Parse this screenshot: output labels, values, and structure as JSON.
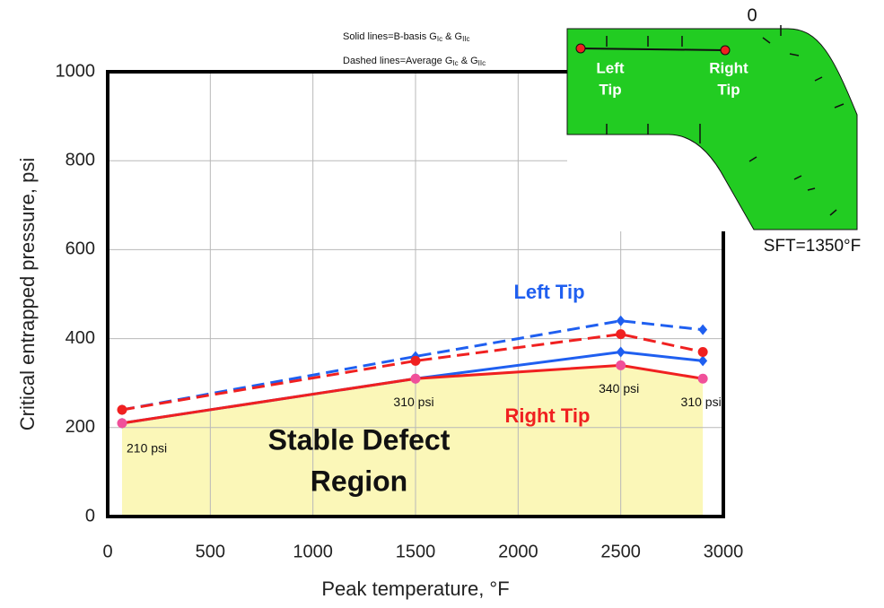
{
  "chart_data": {
    "type": "line",
    "x": [
      70,
      1500,
      2500,
      2900
    ],
    "series": [
      {
        "name": "Left Tip",
        "color": "#1f5ff0",
        "marker": "diamond",
        "values": [
          210,
          310,
          370,
          350
        ],
        "average": [
          240,
          360,
          440,
          420
        ]
      },
      {
        "name": "Right Tip",
        "color": "#f02020",
        "marker": "circle",
        "values": [
          210,
          310,
          340,
          310
        ],
        "average": [
          240,
          350,
          410,
          370
        ],
        "value_labels": [
          "210 psi",
          "310 psi",
          "340 psi",
          "310 psi"
        ]
      }
    ],
    "region_label": [
      "Stable Defect",
      "Region"
    ],
    "region_color": "#fbf7b8",
    "xlabel": "Peak temperature, °F",
    "ylabel": "Critical entrapped pressure, psi",
    "xlim": [
      0,
      3000
    ],
    "xticks": [
      0,
      500,
      1000,
      1500,
      2000,
      2500,
      3000
    ],
    "ylim": [
      0,
      1000
    ],
    "yticks": [
      0,
      200,
      400,
      600,
      800,
      1000
    ],
    "grid": true,
    "notes": [
      {
        "text": "Solid lines=B-basis G",
        "sub1": "Ic",
        "mid": " & G",
        "sub2": "IIc"
      },
      {
        "text": "Dashed lines=Average G",
        "sub1": "Ic",
        "mid": " & G",
        "sub2": "IIc"
      }
    ],
    "inset": {
      "zero": "0",
      "left": [
        "Left",
        "Tip"
      ],
      "right": [
        "Right",
        "Tip"
      ],
      "sft": "SFT=1350°F"
    }
  }
}
